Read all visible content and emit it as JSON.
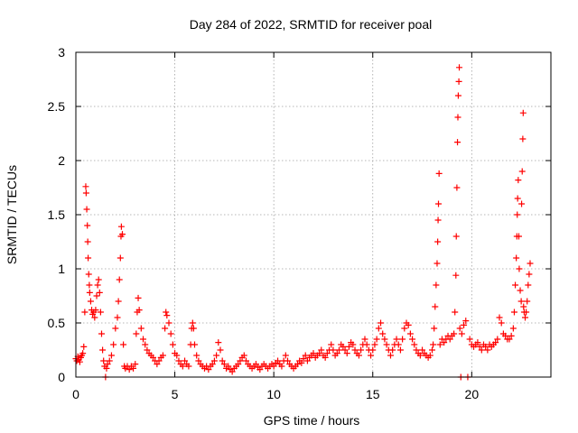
{
  "chart_data": {
    "type": "scatter",
    "title": "Day 284 of 2022, SRMTID for receiver poal",
    "xlabel": "GPS time / hours",
    "ylabel": "SRMTID / TECUs",
    "xlim": [
      0,
      24
    ],
    "ylim": [
      0,
      3
    ],
    "x_ticks": [
      0,
      5,
      10,
      15,
      20
    ],
    "y_ticks": [
      0,
      0.5,
      1,
      1.5,
      2,
      2.5,
      3
    ],
    "x_tick_labels": [
      "0",
      "5",
      "10",
      "15",
      "20"
    ],
    "y_tick_labels": [
      "0",
      "0.5",
      "1",
      "1.5",
      "2",
      "2.5",
      "3"
    ],
    "grid": true,
    "marker": "+",
    "color": "#ff0000",
    "series": [
      {
        "name": "SRMTID",
        "points": [
          [
            0.0,
            0.17
          ],
          [
            0.05,
            0.15
          ],
          [
            0.1,
            0.19
          ],
          [
            0.15,
            0.16
          ],
          [
            0.2,
            0.14
          ],
          [
            0.25,
            0.18
          ],
          [
            0.3,
            0.2
          ],
          [
            0.35,
            0.22
          ],
          [
            0.4,
            0.28
          ],
          [
            0.45,
            0.6
          ],
          [
            0.5,
            1.76
          ],
          [
            0.52,
            1.7
          ],
          [
            0.55,
            1.55
          ],
          [
            0.58,
            1.4
          ],
          [
            0.6,
            1.25
          ],
          [
            0.62,
            1.1
          ],
          [
            0.65,
            0.95
          ],
          [
            0.68,
            0.85
          ],
          [
            0.7,
            0.78
          ],
          [
            0.75,
            0.7
          ],
          [
            0.8,
            0.62
          ],
          [
            0.85,
            0.58
          ],
          [
            0.9,
            0.6
          ],
          [
            0.95,
            0.55
          ],
          [
            1.0,
            0.62
          ],
          [
            1.05,
            0.75
          ],
          [
            1.1,
            0.85
          ],
          [
            1.15,
            0.9
          ],
          [
            1.2,
            0.78
          ],
          [
            1.25,
            0.6
          ],
          [
            1.3,
            0.4
          ],
          [
            1.35,
            0.25
          ],
          [
            1.4,
            0.15
          ],
          [
            1.45,
            0.1
          ],
          [
            1.5,
            0.0
          ],
          [
            1.55,
            0.08
          ],
          [
            1.6,
            0.12
          ],
          [
            1.7,
            0.15
          ],
          [
            1.8,
            0.2
          ],
          [
            1.9,
            0.3
          ],
          [
            2.0,
            0.45
          ],
          [
            2.1,
            0.55
          ],
          [
            2.15,
            0.7
          ],
          [
            2.2,
            0.9
          ],
          [
            2.25,
            1.1
          ],
          [
            2.28,
            1.3
          ],
          [
            2.3,
            1.39
          ],
          [
            2.35,
            1.32
          ],
          [
            2.4,
            0.3
          ],
          [
            2.45,
            0.1
          ],
          [
            2.5,
            0.08
          ],
          [
            2.6,
            0.1
          ],
          [
            2.7,
            0.07
          ],
          [
            2.8,
            0.1
          ],
          [
            2.9,
            0.08
          ],
          [
            3.0,
            0.12
          ],
          [
            3.05,
            0.4
          ],
          [
            3.1,
            0.6
          ],
          [
            3.15,
            0.73
          ],
          [
            3.2,
            0.62
          ],
          [
            3.3,
            0.45
          ],
          [
            3.4,
            0.35
          ],
          [
            3.5,
            0.3
          ],
          [
            3.6,
            0.25
          ],
          [
            3.7,
            0.22
          ],
          [
            3.8,
            0.2
          ],
          [
            3.9,
            0.18
          ],
          [
            4.0,
            0.15
          ],
          [
            4.1,
            0.12
          ],
          [
            4.2,
            0.15
          ],
          [
            4.3,
            0.18
          ],
          [
            4.4,
            0.2
          ],
          [
            4.5,
            0.45
          ],
          [
            4.55,
            0.6
          ],
          [
            4.6,
            0.57
          ],
          [
            4.7,
            0.5
          ],
          [
            4.8,
            0.4
          ],
          [
            4.9,
            0.3
          ],
          [
            5.0,
            0.22
          ],
          [
            5.1,
            0.2
          ],
          [
            5.2,
            0.15
          ],
          [
            5.3,
            0.12
          ],
          [
            5.4,
            0.1
          ],
          [
            5.5,
            0.15
          ],
          [
            5.6,
            0.12
          ],
          [
            5.7,
            0.1
          ],
          [
            5.8,
            0.3
          ],
          [
            5.85,
            0.45
          ],
          [
            5.9,
            0.5
          ],
          [
            5.95,
            0.45
          ],
          [
            6.0,
            0.3
          ],
          [
            6.1,
            0.2
          ],
          [
            6.2,
            0.15
          ],
          [
            6.3,
            0.12
          ],
          [
            6.4,
            0.1
          ],
          [
            6.5,
            0.08
          ],
          [
            6.6,
            0.1
          ],
          [
            6.7,
            0.07
          ],
          [
            6.8,
            0.1
          ],
          [
            6.9,
            0.12
          ],
          [
            7.0,
            0.15
          ],
          [
            7.1,
            0.2
          ],
          [
            7.2,
            0.32
          ],
          [
            7.3,
            0.25
          ],
          [
            7.4,
            0.15
          ],
          [
            7.5,
            0.12
          ],
          [
            7.6,
            0.08
          ],
          [
            7.7,
            0.1
          ],
          [
            7.8,
            0.07
          ],
          [
            7.9,
            0.05
          ],
          [
            8.0,
            0.08
          ],
          [
            8.1,
            0.1
          ],
          [
            8.2,
            0.12
          ],
          [
            8.3,
            0.15
          ],
          [
            8.4,
            0.18
          ],
          [
            8.5,
            0.2
          ],
          [
            8.6,
            0.15
          ],
          [
            8.7,
            0.12
          ],
          [
            8.8,
            0.1
          ],
          [
            8.9,
            0.08
          ],
          [
            9.0,
            0.1
          ],
          [
            9.1,
            0.12
          ],
          [
            9.2,
            0.09
          ],
          [
            9.3,
            0.07
          ],
          [
            9.4,
            0.1
          ],
          [
            9.5,
            0.12
          ],
          [
            9.6,
            0.1
          ],
          [
            9.7,
            0.08
          ],
          [
            9.8,
            0.1
          ],
          [
            9.9,
            0.12
          ],
          [
            10.0,
            0.1
          ],
          [
            10.1,
            0.13
          ],
          [
            10.2,
            0.15
          ],
          [
            10.3,
            0.12
          ],
          [
            10.4,
            0.1
          ],
          [
            10.5,
            0.15
          ],
          [
            10.6,
            0.2
          ],
          [
            10.7,
            0.15
          ],
          [
            10.8,
            0.12
          ],
          [
            10.9,
            0.1
          ],
          [
            11.0,
            0.08
          ],
          [
            11.1,
            0.1
          ],
          [
            11.2,
            0.12
          ],
          [
            11.3,
            0.15
          ],
          [
            11.4,
            0.13
          ],
          [
            11.5,
            0.17
          ],
          [
            11.6,
            0.2
          ],
          [
            11.7,
            0.15
          ],
          [
            11.8,
            0.18
          ],
          [
            11.9,
            0.2
          ],
          [
            12.0,
            0.22
          ],
          [
            12.1,
            0.18
          ],
          [
            12.2,
            0.2
          ],
          [
            12.3,
            0.22
          ],
          [
            12.4,
            0.25
          ],
          [
            12.5,
            0.2
          ],
          [
            12.6,
            0.18
          ],
          [
            12.7,
            0.22
          ],
          [
            12.8,
            0.25
          ],
          [
            12.9,
            0.3
          ],
          [
            13.0,
            0.25
          ],
          [
            13.1,
            0.2
          ],
          [
            13.2,
            0.22
          ],
          [
            13.3,
            0.25
          ],
          [
            13.4,
            0.3
          ],
          [
            13.5,
            0.28
          ],
          [
            13.6,
            0.25
          ],
          [
            13.7,
            0.22
          ],
          [
            13.8,
            0.28
          ],
          [
            13.9,
            0.32
          ],
          [
            14.0,
            0.3
          ],
          [
            14.1,
            0.25
          ],
          [
            14.2,
            0.22
          ],
          [
            14.3,
            0.2
          ],
          [
            14.4,
            0.25
          ],
          [
            14.5,
            0.3
          ],
          [
            14.6,
            0.35
          ],
          [
            14.7,
            0.3
          ],
          [
            14.8,
            0.25
          ],
          [
            14.9,
            0.2
          ],
          [
            15.0,
            0.25
          ],
          [
            15.1,
            0.3
          ],
          [
            15.2,
            0.35
          ],
          [
            15.3,
            0.45
          ],
          [
            15.4,
            0.5
          ],
          [
            15.5,
            0.4
          ],
          [
            15.6,
            0.35
          ],
          [
            15.7,
            0.3
          ],
          [
            15.8,
            0.25
          ],
          [
            15.9,
            0.2
          ],
          [
            16.0,
            0.25
          ],
          [
            16.1,
            0.3
          ],
          [
            16.2,
            0.35
          ],
          [
            16.3,
            0.3
          ],
          [
            16.4,
            0.25
          ],
          [
            16.5,
            0.35
          ],
          [
            16.6,
            0.45
          ],
          [
            16.7,
            0.5
          ],
          [
            16.8,
            0.48
          ],
          [
            16.9,
            0.4
          ],
          [
            17.0,
            0.35
          ],
          [
            17.1,
            0.3
          ],
          [
            17.2,
            0.25
          ],
          [
            17.3,
            0.22
          ],
          [
            17.4,
            0.2
          ],
          [
            17.5,
            0.25
          ],
          [
            17.6,
            0.22
          ],
          [
            17.7,
            0.2
          ],
          [
            17.8,
            0.18
          ],
          [
            17.9,
            0.2
          ],
          [
            18.0,
            0.25
          ],
          [
            18.05,
            0.3
          ],
          [
            18.1,
            0.45
          ],
          [
            18.15,
            0.65
          ],
          [
            18.2,
            0.85
          ],
          [
            18.25,
            1.05
          ],
          [
            18.28,
            1.25
          ],
          [
            18.3,
            1.45
          ],
          [
            18.32,
            1.6
          ],
          [
            18.35,
            1.88
          ],
          [
            18.4,
            0.3
          ],
          [
            18.5,
            0.35
          ],
          [
            18.6,
            0.32
          ],
          [
            18.7,
            0.35
          ],
          [
            18.8,
            0.38
          ],
          [
            18.9,
            0.35
          ],
          [
            19.0,
            0.38
          ],
          [
            19.1,
            0.4
          ],
          [
            19.15,
            0.6
          ],
          [
            19.2,
            0.94
          ],
          [
            19.22,
            1.3
          ],
          [
            19.25,
            1.75
          ],
          [
            19.28,
            2.17
          ],
          [
            19.3,
            2.4
          ],
          [
            19.32,
            2.6
          ],
          [
            19.35,
            2.73
          ],
          [
            19.37,
            2.86
          ],
          [
            19.4,
            0.45
          ],
          [
            19.45,
            0.0
          ],
          [
            19.5,
            0.4
          ],
          [
            19.6,
            0.48
          ],
          [
            19.7,
            0.52
          ],
          [
            19.8,
            0.0
          ],
          [
            19.9,
            0.35
          ],
          [
            20.0,
            0.3
          ],
          [
            20.1,
            0.28
          ],
          [
            20.2,
            0.3
          ],
          [
            20.3,
            0.32
          ],
          [
            20.4,
            0.28
          ],
          [
            20.5,
            0.25
          ],
          [
            20.6,
            0.3
          ],
          [
            20.7,
            0.28
          ],
          [
            20.8,
            0.25
          ],
          [
            20.9,
            0.3
          ],
          [
            21.0,
            0.28
          ],
          [
            21.1,
            0.3
          ],
          [
            21.2,
            0.32
          ],
          [
            21.3,
            0.35
          ],
          [
            21.4,
            0.55
          ],
          [
            21.5,
            0.5
          ],
          [
            21.6,
            0.4
          ],
          [
            21.7,
            0.38
          ],
          [
            21.8,
            0.35
          ],
          [
            21.9,
            0.35
          ],
          [
            22.0,
            0.38
          ],
          [
            22.1,
            0.45
          ],
          [
            22.15,
            0.6
          ],
          [
            22.2,
            0.85
          ],
          [
            22.25,
            1.1
          ],
          [
            22.28,
            1.3
          ],
          [
            22.3,
            1.5
          ],
          [
            22.32,
            1.65
          ],
          [
            22.35,
            1.82
          ],
          [
            22.38,
            1.3
          ],
          [
            22.4,
            1.0
          ],
          [
            22.45,
            0.8
          ],
          [
            22.5,
            0.7
          ],
          [
            22.52,
            1.6
          ],
          [
            22.55,
            1.9
          ],
          [
            22.58,
            2.2
          ],
          [
            22.6,
            2.44
          ],
          [
            22.62,
            0.65
          ],
          [
            22.65,
            0.6
          ],
          [
            22.7,
            0.55
          ],
          [
            22.75,
            0.6
          ],
          [
            22.8,
            0.7
          ],
          [
            22.85,
            0.85
          ],
          [
            22.9,
            0.95
          ],
          [
            22.95,
            1.05
          ]
        ]
      }
    ]
  }
}
